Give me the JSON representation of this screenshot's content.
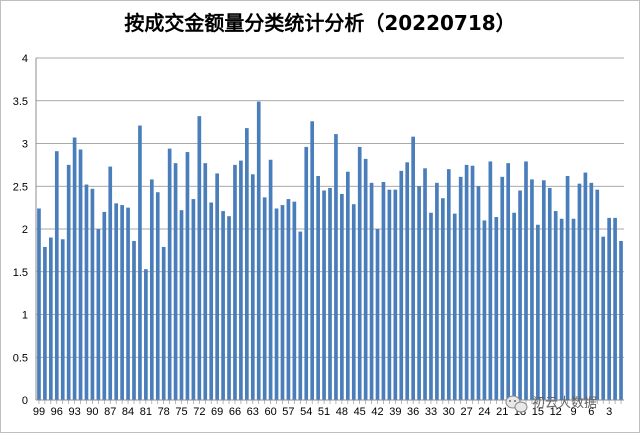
{
  "chart_data": {
    "type": "bar",
    "title": "按成交金额量分类统计分析（20220718）",
    "xlabel": "",
    "ylabel": "",
    "ylim": [
      0,
      4
    ],
    "yticks": [
      "0",
      "0.5",
      "1",
      "1.5",
      "2",
      "2.5",
      "3",
      "3.5",
      "4"
    ],
    "grid": true,
    "legend": "none",
    "bar_color": "#4a7ebb",
    "x_tick_labels": [
      "99",
      "96",
      "93",
      "90",
      "87",
      "84",
      "81",
      "78",
      "75",
      "72",
      "69",
      "66",
      "63",
      "60",
      "57",
      "54",
      "51",
      "48",
      "45",
      "42",
      "39",
      "36",
      "33",
      "30",
      "27",
      "24",
      "21",
      "18",
      "15",
      "12",
      "9",
      "6",
      "3"
    ],
    "categories": [
      "99",
      "98",
      "97",
      "96",
      "95",
      "94",
      "93",
      "92",
      "91",
      "90",
      "89",
      "88",
      "87",
      "86",
      "85",
      "84",
      "83",
      "82",
      "81",
      "80",
      "79",
      "78",
      "77",
      "76",
      "75",
      "74",
      "73",
      "72",
      "71",
      "70",
      "69",
      "68",
      "67",
      "66",
      "65",
      "64",
      "63",
      "62",
      "61",
      "60",
      "59",
      "58",
      "57",
      "56",
      "55",
      "54",
      "53",
      "52",
      "51",
      "50",
      "49",
      "48",
      "47",
      "46",
      "45",
      "44",
      "43",
      "42",
      "41",
      "40",
      "39",
      "38",
      "37",
      "36",
      "35",
      "34",
      "33",
      "32",
      "31",
      "30",
      "29",
      "28",
      "27",
      "26",
      "25",
      "24",
      "23",
      "22",
      "21",
      "20",
      "19",
      "18",
      "17",
      "16",
      "15",
      "14",
      "13",
      "12",
      "11",
      "10",
      "9",
      "8",
      "7",
      "6",
      "5",
      "4",
      "3",
      "2",
      "1"
    ],
    "values": [
      2.24,
      1.79,
      1.9,
      2.91,
      1.88,
      2.75,
      3.07,
      2.93,
      2.52,
      2.47,
      2.0,
      2.2,
      2.73,
      2.3,
      2.28,
      2.25,
      1.86,
      3.21,
      1.53,
      2.58,
      2.43,
      1.79,
      2.94,
      2.77,
      2.22,
      2.9,
      2.35,
      3.32,
      2.77,
      2.31,
      2.65,
      2.21,
      2.15,
      2.75,
      2.8,
      3.18,
      2.64,
      3.49,
      2.37,
      2.81,
      2.24,
      2.28,
      2.35,
      2.32,
      1.97,
      2.96,
      3.26,
      2.62,
      2.45,
      2.48,
      3.11,
      2.41,
      2.67,
      2.29,
      2.96,
      2.82,
      2.54,
      2.0,
      2.55,
      2.46,
      2.46,
      2.68,
      2.78,
      3.08,
      2.5,
      2.71,
      2.19,
      2.54,
      2.36,
      2.7,
      2.18,
      2.61,
      2.75,
      2.74,
      2.5,
      2.1,
      2.79,
      2.14,
      2.61,
      2.77,
      2.19,
      2.45,
      2.79,
      2.58,
      2.05,
      2.57,
      2.48,
      2.21,
      2.12,
      2.62,
      2.12,
      2.53,
      2.66,
      2.54,
      2.46,
      1.91,
      2.13,
      2.13,
      1.86
    ]
  },
  "watermark": {
    "icon": "wechat-icon",
    "text": "初云大数据"
  }
}
